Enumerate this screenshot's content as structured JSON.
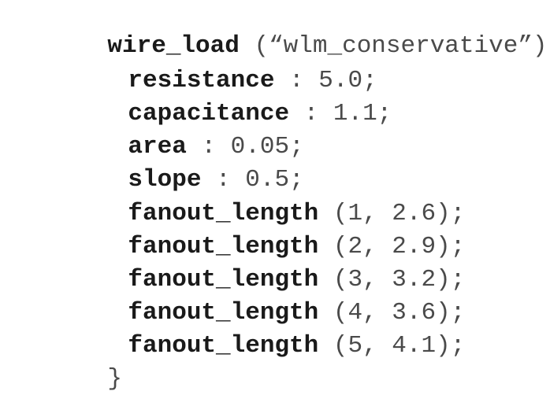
{
  "header": {
    "keyword": "wire_load",
    "argument": "(“wlm_conservative”) {"
  },
  "attributes": [
    {
      "name": "resistance",
      "separator": " : ",
      "value": "5.0;"
    },
    {
      "name": "capacitance",
      "separator": " : ",
      "value": "1.1;"
    },
    {
      "name": "area",
      "separator": " : ",
      "value": "0.05;"
    },
    {
      "name": "slope",
      "separator": " : ",
      "value": "0.5;"
    }
  ],
  "fanout_lengths": [
    {
      "name": "fanout_length",
      "args": " (1, 2.6);"
    },
    {
      "name": "fanout_length",
      "args": " (2, 2.9);"
    },
    {
      "name": "fanout_length",
      "args": " (3, 3.2);"
    },
    {
      "name": "fanout_length",
      "args": " (4, 3.6);"
    },
    {
      "name": "fanout_length",
      "args": " (5, 4.1);"
    }
  ],
  "footer": {
    "closing_brace": "}"
  }
}
